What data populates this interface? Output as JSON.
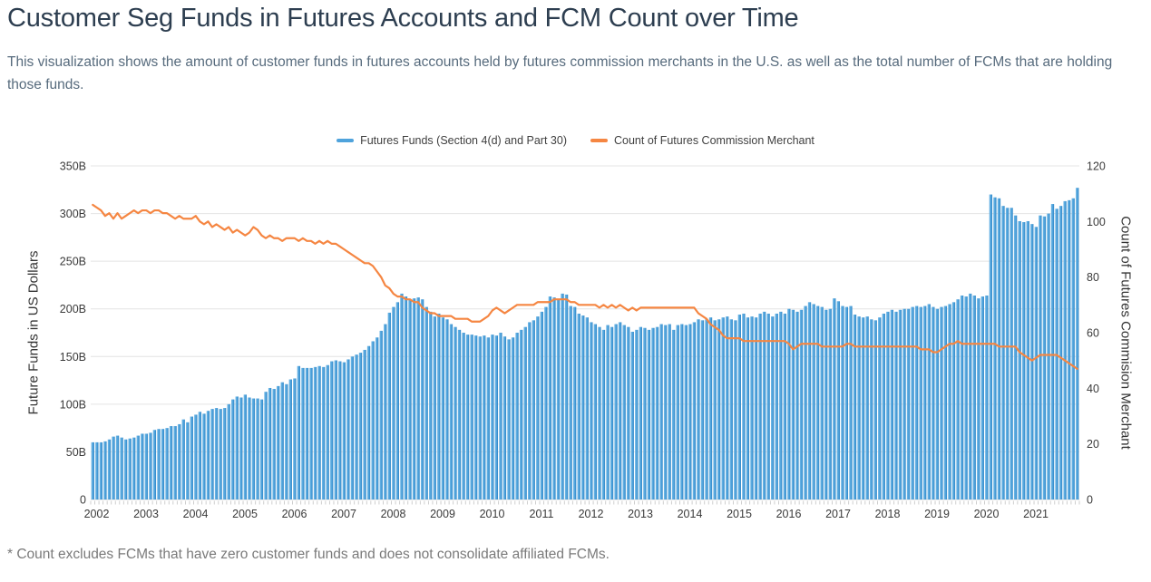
{
  "header": {
    "title": "Customer Seg Funds in Futures Accounts and FCM Count over Time",
    "subtitle": "This visualization shows the amount of customer funds in futures accounts held by futures commission merchants in the U.S. as well as the total number of FCMs that are holding those funds."
  },
  "legend": {
    "items": [
      {
        "label": "Futures Funds (Section 4(d) and Part 30)",
        "color": "#4FA3DC"
      },
      {
        "label": "Count of Futures Commission Merchant",
        "color": "#F58642"
      }
    ]
  },
  "footnote": "* Count excludes FCMs that have zero customer funds and does not consolidate affiliated FCMs.",
  "colors": {
    "bar_fill": "#4FA3DC",
    "bar_fill_light": "#74B9E6",
    "bar_fill_dark": "#2E84C5",
    "line": "#F58642",
    "grid": "#E4E4E4",
    "axis_line": "#D8D8D8",
    "tick": "#C9C9C9",
    "axis_text": "#3A3A3A"
  },
  "chart_data": {
    "type": "combo",
    "x_start": "2002-01",
    "x_frequency": "monthly",
    "years": [
      2002,
      2003,
      2004,
      2005,
      2006,
      2007,
      2008,
      2009,
      2010,
      2011,
      2012,
      2013,
      2014,
      2015,
      2016,
      2017,
      2018,
      2019,
      2020,
      2021
    ],
    "ylabel_left": "Future Funds in US Dollars",
    "ylabel_right": "Count of Futures Commision Merchant",
    "y_left_max": 350,
    "y_right_max": 120,
    "y_left_ticks": [
      {
        "v": 0,
        "label": "0"
      },
      {
        "v": 50,
        "label": "50B"
      },
      {
        "v": 100,
        "label": "100B"
      },
      {
        "v": 150,
        "label": "150B"
      },
      {
        "v": 200,
        "label": "200B"
      },
      {
        "v": 250,
        "label": "250B"
      },
      {
        "v": 300,
        "label": "300B"
      },
      {
        "v": 350,
        "label": "350B"
      }
    ],
    "y_right_ticks": [
      {
        "v": 0,
        "label": "0"
      },
      {
        "v": 20,
        "label": "20"
      },
      {
        "v": 40,
        "label": "40"
      },
      {
        "v": 60,
        "label": "60"
      },
      {
        "v": 80,
        "label": "80"
      },
      {
        "v": 100,
        "label": "100"
      },
      {
        "v": 120,
        "label": "120"
      }
    ],
    "series": [
      {
        "name": "Futures Funds (Section 4(d) and Part 30)",
        "type": "bar",
        "axis": "left",
        "unit": "billions USD",
        "values": [
          60,
          60,
          60,
          61,
          63,
          66,
          67,
          65,
          63,
          64,
          65,
          67,
          69,
          69,
          70,
          73,
          74,
          74,
          75,
          77,
          77,
          79,
          84,
          81,
          87,
          89,
          92,
          90,
          93,
          95,
          96,
          95,
          96,
          100,
          105,
          108,
          107,
          110,
          107,
          106,
          106,
          105,
          113,
          117,
          116,
          119,
          123,
          121,
          126,
          127,
          140,
          138,
          138,
          138,
          139,
          140,
          139,
          141,
          145,
          146,
          145,
          144,
          147,
          150,
          152,
          154,
          157,
          161,
          166,
          170,
          177,
          184,
          196,
          202,
          207,
          216,
          213,
          210,
          211,
          212,
          210,
          202,
          197,
          192,
          195,
          191,
          189,
          184,
          181,
          178,
          175,
          173,
          173,
          172,
          171,
          172,
          170,
          173,
          172,
          175,
          171,
          168,
          170,
          175,
          178,
          181,
          186,
          188,
          192,
          197,
          202,
          213,
          212,
          210,
          216,
          215,
          203,
          202,
          195,
          193,
          191,
          186,
          184,
          181,
          178,
          183,
          181,
          184,
          186,
          183,
          181,
          176,
          178,
          181,
          180,
          178,
          180,
          181,
          184,
          183,
          184,
          178,
          183,
          184,
          183,
          184,
          186,
          189,
          188,
          189,
          191,
          188,
          189,
          191,
          192,
          189,
          188,
          194,
          195,
          191,
          192,
          191,
          195,
          197,
          195,
          192,
          195,
          197,
          195,
          200,
          199,
          197,
          199,
          203,
          207,
          205,
          203,
          202,
          199,
          200,
          211,
          208,
          203,
          202,
          203,
          194,
          192,
          191,
          192,
          189,
          188,
          191,
          195,
          197,
          199,
          197,
          199,
          200,
          200,
          202,
          203,
          202,
          203,
          205,
          202,
          200,
          202,
          203,
          205,
          207,
          210,
          214,
          213,
          216,
          214,
          211,
          213,
          214,
          320,
          317,
          316,
          308,
          306,
          306,
          298,
          292,
          291,
          292,
          289,
          286,
          298,
          297,
          300,
          310,
          305,
          308,
          313,
          314,
          316,
          327
        ]
      },
      {
        "name": "Count of Futures Commission Merchant",
        "type": "line",
        "axis": "right",
        "unit": "count",
        "values": [
          106,
          105,
          104,
          102,
          103,
          101,
          103,
          101,
          102,
          103,
          104,
          103,
          104,
          104,
          103,
          104,
          104,
          103,
          103,
          102,
          101,
          102,
          101,
          101,
          101,
          102,
          100,
          99,
          100,
          98,
          99,
          98,
          97,
          98,
          96,
          97,
          96,
          95,
          96,
          98,
          97,
          95,
          94,
          95,
          94,
          94,
          93,
          94,
          94,
          94,
          93,
          94,
          93,
          93,
          92,
          93,
          92,
          93,
          92,
          92,
          91,
          90,
          89,
          88,
          87,
          86,
          85,
          85,
          84,
          82,
          80,
          77,
          76,
          74,
          73,
          73,
          72,
          72,
          71,
          71,
          69,
          68,
          67,
          67,
          66,
          66,
          66,
          66,
          65,
          65,
          65,
          65,
          64,
          64,
          64,
          65,
          66,
          68,
          69,
          68,
          67,
          68,
          69,
          70,
          70,
          70,
          70,
          70,
          71,
          71,
          71,
          71,
          72,
          72,
          72,
          72,
          71,
          71,
          70,
          70,
          70,
          70,
          70,
          69,
          70,
          69,
          70,
          69,
          70,
          69,
          68,
          69,
          68,
          69,
          69,
          69,
          69,
          69,
          69,
          69,
          69,
          69,
          69,
          69,
          69,
          69,
          69,
          67,
          66,
          65,
          63,
          62,
          61,
          59,
          58,
          58,
          58,
          58,
          57,
          57,
          57,
          57,
          57,
          57,
          57,
          57,
          57,
          57,
          57,
          56,
          54,
          55,
          56,
          56,
          56,
          56,
          56,
          55,
          55,
          55,
          55,
          55,
          55,
          56,
          56,
          55,
          55,
          55,
          55,
          55,
          55,
          55,
          55,
          55,
          55,
          55,
          55,
          55,
          55,
          55,
          55,
          54,
          54,
          54,
          53,
          53,
          54,
          55,
          56,
          56,
          57,
          56,
          56,
          56,
          56,
          56,
          56,
          56,
          56,
          56,
          55,
          55,
          55,
          55,
          55,
          53,
          52,
          51,
          50,
          51,
          52,
          52,
          52,
          52,
          52,
          51,
          50,
          49,
          48,
          47
        ]
      }
    ]
  }
}
